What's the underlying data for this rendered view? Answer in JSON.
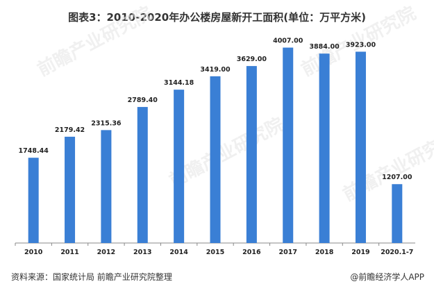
{
  "chart_data": {
    "type": "bar",
    "title": "图表3：2010-2020年办公楼房屋新开工面积(单位：万平方米)",
    "categories": [
      "2010",
      "2011",
      "2012",
      "2013",
      "2014",
      "2015",
      "2016",
      "2017",
      "2018",
      "2019",
      "2020.1-7"
    ],
    "values": [
      1748.44,
      2179.42,
      2315.36,
      2789.4,
      3144.18,
      3419.0,
      3629.0,
      4007.0,
      3884.0,
      3923.0,
      1207.0
    ],
    "value_labels": [
      "1748.44",
      "2179.42",
      "2315.36",
      "2789.40",
      "3144.18",
      "3419.00",
      "3629.00",
      "4007.00",
      "3884.00",
      "3923.00",
      "1207.00"
    ],
    "ylim": [
      0,
      4200
    ],
    "xlabel": "",
    "ylabel": "",
    "bar_color": "#3a7fd5",
    "grid": false
  },
  "footer": {
    "source": "资料来源：国家统计局 前瞻产业研究院整理",
    "brand": "@前瞻经济学人APP"
  },
  "watermark": {
    "text": "前瞻产业研究院",
    "color": "#e6e6e6"
  }
}
